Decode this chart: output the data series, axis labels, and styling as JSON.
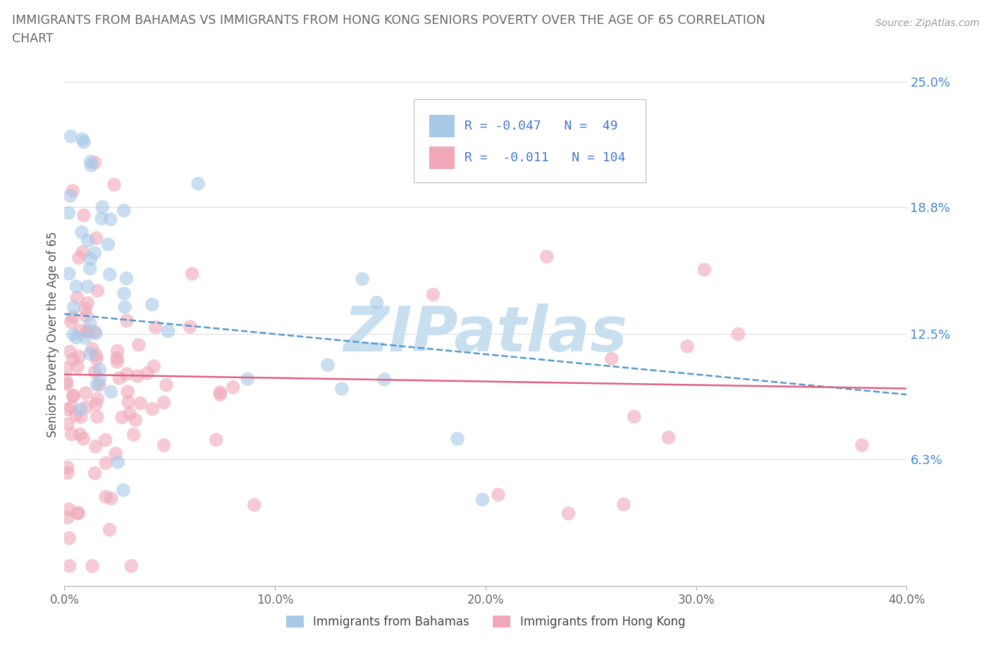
{
  "title_line1": "IMMIGRANTS FROM BAHAMAS VS IMMIGRANTS FROM HONG KONG SENIORS POVERTY OVER THE AGE OF 65 CORRELATION",
  "title_line2": "CHART",
  "source": "Source: ZipAtlas.com",
  "ylabel": "Seniors Poverty Over the Age of 65",
  "xlim": [
    0.0,
    0.4
  ],
  "ylim": [
    0.0,
    0.25
  ],
  "ytick_vals": [
    0.0,
    0.063,
    0.125,
    0.188,
    0.25
  ],
  "ytick_labels": [
    "",
    "6.3%",
    "12.5%",
    "18.8%",
    "25.0%"
  ],
  "xtick_vals": [
    0.0,
    0.1,
    0.2,
    0.3,
    0.4
  ],
  "xtick_labels": [
    "0.0%",
    "10.0%",
    "20.0%",
    "30.0%",
    "40.0%"
  ],
  "bahamas_R": -0.047,
  "bahamas_N": 49,
  "hongkong_R": -0.011,
  "hongkong_N": 104,
  "bahamas_scatter_color": "#a8c8e8",
  "hongkong_scatter_color": "#f0a8b8",
  "bahamas_line_color": "#5599cc",
  "hongkong_line_color": "#e06080",
  "bahamas_label": "Immigrants from Bahamas",
  "hongkong_label": "Immigrants from Hong Kong",
  "watermark_color": "#c8dff0",
  "legend_text_color": "#4477cc",
  "title_color": "#666666",
  "source_color": "#999999",
  "axis_label_color": "#555555",
  "tick_color_y": "#4488cc",
  "tick_color_x": "#666666",
  "grid_color": "#dddddd",
  "background": "#ffffff",
  "bah_line_start_y": 0.135,
  "bah_line_end_y": 0.095,
  "hk_line_start_y": 0.105,
  "hk_line_end_y": 0.098
}
